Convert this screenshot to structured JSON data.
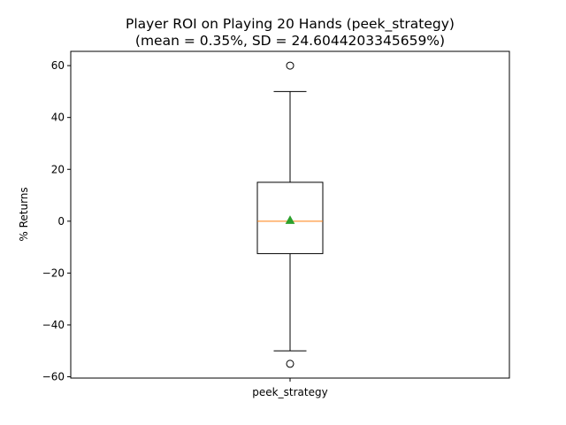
{
  "chart_data": {
    "type": "box",
    "title_line1": "Player ROI on Playing 20 Hands (peek_strategy)",
    "title_line2": "(mean = 0.35%, SD = 24.6044203345659%)",
    "xlabel": "",
    "ylabel": "% Returns",
    "categories": [
      "peek_strategy"
    ],
    "ylim": [
      -60.5,
      65.5
    ],
    "yticks": [
      60,
      40,
      20,
      0,
      -20,
      -40,
      -60
    ],
    "ytick_labels": [
      "60",
      "40",
      "20",
      "0",
      "−20",
      "−40",
      "−60"
    ],
    "grid": false,
    "box": {
      "whisker_low": -50,
      "q1": -12.5,
      "median": 0,
      "q3": 15,
      "whisker_high": 50,
      "mean": 0.35,
      "outliers": [
        60,
        -55
      ]
    },
    "colors": {
      "box": "#000000",
      "median": "#ff7f0e",
      "mean_marker": "#2ca02c"
    }
  }
}
